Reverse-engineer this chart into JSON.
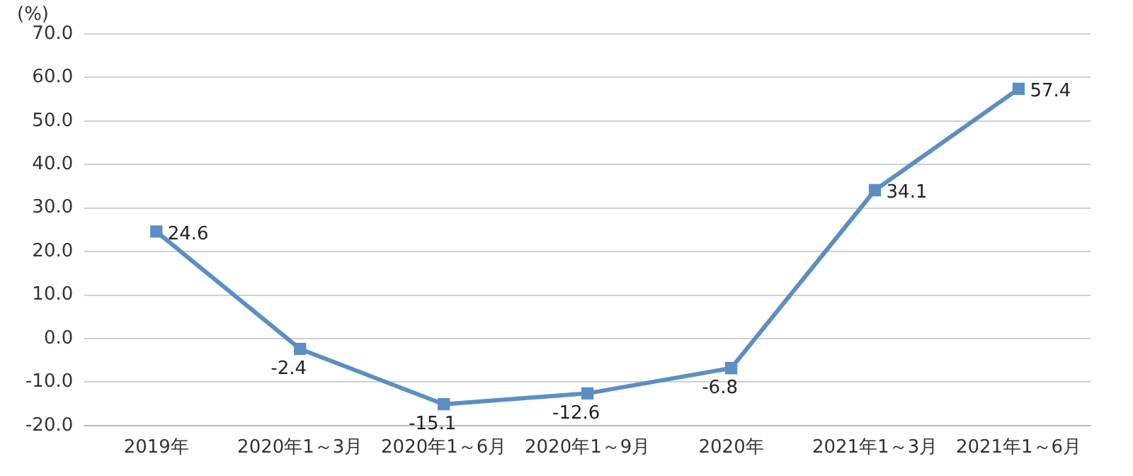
{
  "chart_data": {
    "type": "line",
    "ylabel": "(%)",
    "categories": [
      "2019年",
      "2020年1～3月",
      "2020年1～6月",
      "2020年1～9月",
      "2020年",
      "2021年1～3月",
      "2021年1～6月"
    ],
    "series": [
      {
        "color": "#5b8fc4",
        "values": [
          24.6,
          -2.4,
          -15.1,
          -12.6,
          -6.8,
          34.1,
          57.4
        ]
      }
    ],
    "ylim": [
      -20,
      70
    ],
    "yticks": [
      {
        "value": -20,
        "label": "-20.0"
      },
      {
        "value": -10,
        "label": "-10.0"
      },
      {
        "value": 0,
        "label": "0.0"
      },
      {
        "value": 10,
        "label": "10.0"
      },
      {
        "value": 20,
        "label": "20.0"
      },
      {
        "value": 30,
        "label": "30.0"
      },
      {
        "value": 40,
        "label": "40.0"
      },
      {
        "value": 50,
        "label": "50.0"
      },
      {
        "value": 60,
        "label": "60.0"
      },
      {
        "value": 70,
        "label": "70.0"
      }
    ],
    "grid": "y",
    "marker": "square",
    "line_style": "solid",
    "data_labels": true,
    "legend": false
  }
}
